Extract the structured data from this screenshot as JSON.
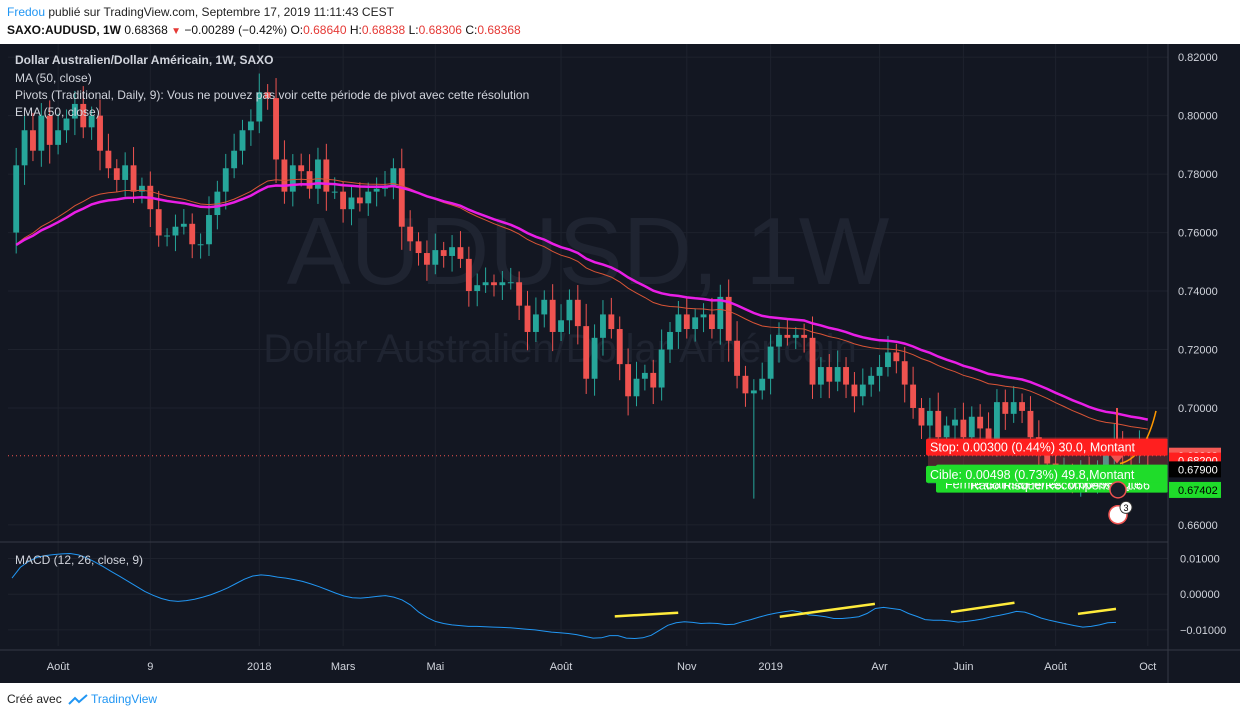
{
  "header": {
    "author": "Fredou",
    "published_text": " publié sur TradingView.com, Septembre 17, 2019 11:11:43 CEST",
    "symbol": "SAXO:AUDUSD, 1W",
    "last": "0.68368",
    "change": "−0.00289 (−0.42%)",
    "o_label": "O:",
    "o_value": "0.68640",
    "h_label": "H:",
    "h_value": "0.68838",
    "l_label": "L:",
    "l_value": "0.68306",
    "c_label": "C:",
    "c_value": "0.68368"
  },
  "legend": {
    "title": "Dollar Australien/Dollar Américain, 1W, SAXO",
    "ma": "MA (50, close)",
    "pivots": "Pivots (Traditional, Daily, 9): Vous ne pouvez pas voir cette période de pivot avec cette résolution",
    "ema": "EMA (50, close)",
    "macd": "MACD (12, 26, close, 9)"
  },
  "watermark": {
    "big": "AUDUSD, 1W",
    "sub": "Dollar Australien/Dollar Américain"
  },
  "position_tool": {
    "stop": "Stop: 0.00300 (0.44%) 30.0, Montant",
    "closed": "Fermé Gains&Pertes: 0.00498, Qté",
    "ratio": "Ratio Risque/Récompense: 1.66",
    "target": "Cible: 0.00498 (0.73%) 49.8,Montant",
    "badge": "3"
  },
  "price_labels": {
    "last": "0.68368",
    "stop": "0.68200",
    "entry": "0.67900",
    "target": "0.67402"
  },
  "footer": {
    "created": "Créé avec",
    "brand": "TradingView"
  },
  "colors": {
    "up": "#26a69a",
    "down": "#ef5350",
    "ma": "#d85436",
    "ema": "#e91ee6",
    "macd": "#2196f3",
    "annotation": "#ffeb3b",
    "background": "#131722"
  },
  "chart_data": [
    {
      "type": "candlestick",
      "title": "Dollar Australien/Dollar Américain, 1W, SAXO",
      "y_ticks": [
        "0.82000",
        "0.80000",
        "0.78000",
        "0.76000",
        "0.74000",
        "0.72000",
        "0.70000",
        "0.66000"
      ],
      "ylim": [
        0.6545,
        0.8245
      ],
      "x_ticks": [
        "Août",
        "9",
        "2018",
        "Mars",
        "Mai",
        "Août",
        "Nov",
        "2019",
        "Avr",
        "Juin",
        "Août",
        "Oct"
      ],
      "x_tick_weeks": [
        5,
        16,
        29,
        39,
        50,
        65,
        80,
        90,
        103,
        113,
        124,
        135
      ],
      "grid": true,
      "closes": [
        0.783,
        0.795,
        0.788,
        0.8,
        0.79,
        0.795,
        0.799,
        0.804,
        0.796,
        0.8,
        0.788,
        0.782,
        0.778,
        0.783,
        0.774,
        0.776,
        0.768,
        0.759,
        0.759,
        0.762,
        0.763,
        0.756,
        0.756,
        0.766,
        0.774,
        0.782,
        0.788,
        0.795,
        0.798,
        0.808,
        0.806,
        0.785,
        0.774,
        0.783,
        0.781,
        0.775,
        0.785,
        0.774,
        0.774,
        0.768,
        0.772,
        0.77,
        0.774,
        0.775,
        0.776,
        0.782,
        0.762,
        0.757,
        0.753,
        0.749,
        0.754,
        0.752,
        0.755,
        0.751,
        0.74,
        0.742,
        0.743,
        0.742,
        0.743,
        0.743,
        0.735,
        0.726,
        0.732,
        0.737,
        0.726,
        0.73,
        0.737,
        0.728,
        0.71,
        0.724,
        0.732,
        0.727,
        0.715,
        0.704,
        0.71,
        0.712,
        0.707,
        0.72,
        0.726,
        0.732,
        0.727,
        0.731,
        0.732,
        0.727,
        0.738,
        0.723,
        0.711,
        0.705,
        0.706,
        0.71,
        0.721,
        0.725,
        0.724,
        0.725,
        0.724,
        0.708,
        0.714,
        0.709,
        0.714,
        0.708,
        0.704,
        0.708,
        0.711,
        0.714,
        0.719,
        0.716,
        0.708,
        0.7,
        0.694,
        0.699,
        0.69,
        0.694,
        0.696,
        0.69,
        0.697,
        0.693,
        0.689,
        0.702,
        0.698,
        0.702,
        0.699,
        0.69,
        0.684,
        0.681,
        0.677,
        0.678,
        0.675,
        0.678,
        0.675,
        0.679,
        0.684,
        0.689,
        0.685,
        0.684,
        0.687,
        0.684
      ],
      "ema_start": 0.7545,
      "ma_start": 0.7545,
      "position": {
        "stop": 0.682,
        "entry": 0.679,
        "target": 0.67402,
        "last": 0.68368
      }
    },
    {
      "type": "line",
      "title": "MACD (12, 26, close, 9)",
      "y_ticks": [
        "0.01000",
        "0.00000",
        "−0.01000"
      ],
      "ylim": [
        -0.0145,
        0.0135
      ],
      "series": [
        {
          "values": [
            0.0045,
            0.0075,
            0.0092,
            0.0103,
            0.0108,
            0.0111,
            0.0113,
            0.0114,
            0.011,
            0.0102,
            0.009,
            0.0077,
            0.0063,
            0.005,
            0.0036,
            0.0022,
            0.0008,
            -0.0003,
            -0.0012,
            -0.0018,
            -0.002,
            -0.0018,
            -0.0014,
            -0.0008,
            -0.0001,
            0.0008,
            0.0018,
            0.003,
            0.0042,
            0.0051,
            0.0054,
            0.0052,
            0.0048,
            0.0045,
            0.0041,
            0.0036,
            0.0029,
            0.0021,
            0.0012,
            0.0003,
            -0.0005,
            -0.001,
            -0.0011,
            -0.0009,
            -0.0006,
            -0.0004,
            -0.0008,
            -0.0016,
            -0.003,
            -0.005,
            -0.0065,
            -0.0076,
            -0.0082,
            -0.0086,
            -0.0088,
            -0.009,
            -0.009,
            -0.0091,
            -0.0092,
            -0.0093,
            -0.0094,
            -0.0096,
            -0.0098,
            -0.01,
            -0.0103,
            -0.0106,
            -0.0108,
            -0.011,
            -0.0113,
            -0.0118,
            -0.0123,
            -0.0122,
            -0.0116,
            -0.0116,
            -0.0123,
            -0.0124,
            -0.0122,
            -0.0115,
            -0.0101,
            -0.0087,
            -0.008,
            -0.0077,
            -0.0079,
            -0.0082,
            -0.0081,
            -0.0082,
            -0.0085,
            -0.0084,
            -0.0077,
            -0.0071,
            -0.0064,
            -0.0058,
            -0.0053,
            -0.0049,
            -0.0046,
            -0.005,
            -0.0058,
            -0.006,
            -0.0063,
            -0.0068,
            -0.0068,
            -0.0066,
            -0.0063,
            -0.0054,
            -0.004,
            -0.0037,
            -0.004,
            -0.0043,
            -0.0054,
            -0.0062,
            -0.0071,
            -0.0073,
            -0.0073,
            -0.0075,
            -0.0078,
            -0.0076,
            -0.0073,
            -0.0069,
            -0.0063,
            -0.0059,
            -0.0054,
            -0.0048,
            -0.005,
            -0.0058,
            -0.0067,
            -0.0073,
            -0.0078,
            -0.0083,
            -0.0088,
            -0.0092,
            -0.009,
            -0.0086,
            -0.008,
            -0.0079
          ]
        }
      ],
      "annotations": [
        [
          95,
          -0.0062,
          105,
          -0.0052
        ],
        [
          121,
          -0.0063,
          136,
          -0.0027
        ],
        [
          148,
          -0.005,
          158,
          -0.0024
        ],
        [
          168,
          -0.0055,
          174,
          -0.0041
        ]
      ]
    }
  ]
}
